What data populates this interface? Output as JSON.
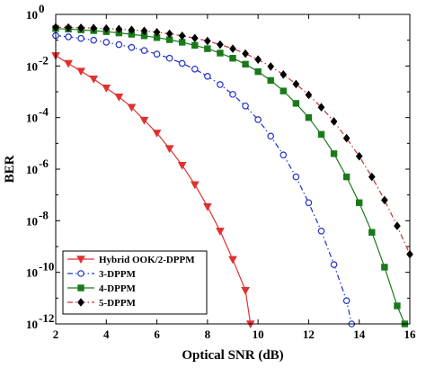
{
  "chart_data": {
    "type": "line",
    "title": "",
    "xlabel": "Optical SNR (dB)",
    "ylabel": "BER",
    "xlim": [
      2,
      16
    ],
    "ylim_log10": [
      -12,
      0
    ],
    "yscale": "log",
    "grid": false,
    "legend_position": "bottom-left",
    "x_ticks": [
      2,
      4,
      6,
      8,
      10,
      12,
      14,
      16
    ],
    "y_ticks_exponents": [
      0,
      -2,
      -4,
      -6,
      -8,
      -10,
      -12
    ],
    "y_tick_base": "10",
    "series": [
      {
        "name": "Hybrid OOK/2-DPPM",
        "color": "#e03030",
        "line_style": "solid",
        "marker": "triangle-down",
        "marker_filled": true,
        "x": [
          2,
          2.5,
          3,
          3.5,
          4,
          4.5,
          5,
          5.5,
          6,
          6.5,
          7,
          7.5,
          8,
          8.5,
          9,
          9.5,
          9.7
        ],
        "log10_y": [
          -1.6,
          -1.9,
          -2.2,
          -2.5,
          -2.85,
          -3.2,
          -3.6,
          -4.1,
          -4.6,
          -5.2,
          -5.85,
          -6.6,
          -7.45,
          -8.4,
          -9.5,
          -10.7,
          -12
        ]
      },
      {
        "name": "3-DPPM",
        "color": "#2030c8",
        "line_style": "dashdot",
        "marker": "circle",
        "marker_filled": false,
        "x": [
          2,
          2.5,
          3,
          3.5,
          4,
          4.5,
          5,
          5.5,
          6,
          6.5,
          7,
          7.5,
          8,
          8.5,
          9,
          9.5,
          10,
          10.5,
          11,
          11.5,
          12,
          12.5,
          13,
          13.5,
          13.7
        ],
        "log10_y": [
          -0.82,
          -0.87,
          -0.93,
          -1.0,
          -1.08,
          -1.17,
          -1.28,
          -1.4,
          -1.54,
          -1.7,
          -1.9,
          -2.12,
          -2.4,
          -2.72,
          -3.1,
          -3.55,
          -4.08,
          -4.72,
          -5.45,
          -6.3,
          -7.3,
          -8.4,
          -9.7,
          -11.1,
          -12
        ]
      },
      {
        "name": "4-DPPM",
        "color": "#1a7a1a",
        "line_style": "solid",
        "marker": "square",
        "marker_filled": true,
        "x": [
          2,
          2.5,
          3,
          3.5,
          4,
          4.5,
          5,
          5.5,
          6,
          6.5,
          7,
          7.5,
          8,
          8.5,
          9,
          9.5,
          10,
          10.5,
          11,
          11.5,
          12,
          12.5,
          13,
          13.5,
          14,
          14.5,
          15,
          15.5,
          15.8
        ],
        "log10_y": [
          -0.55,
          -0.57,
          -0.6,
          -0.63,
          -0.67,
          -0.72,
          -0.77,
          -0.83,
          -0.9,
          -0.98,
          -1.08,
          -1.2,
          -1.33,
          -1.5,
          -1.7,
          -1.93,
          -2.22,
          -2.56,
          -2.97,
          -3.45,
          -4.0,
          -4.65,
          -5.4,
          -6.3,
          -7.3,
          -8.45,
          -9.8,
          -11.3,
          -12
        ]
      },
      {
        "name": "5-DPPM",
        "color": "#c83232",
        "line_style": "dashdot",
        "marker": "diamond",
        "marker_filled": true,
        "marker_color": "#000000",
        "x": [
          2,
          2.5,
          3,
          3.5,
          4,
          4.5,
          5,
          5.5,
          6,
          6.5,
          7,
          7.5,
          8,
          8.5,
          9,
          9.5,
          10,
          10.5,
          11,
          11.5,
          12,
          12.5,
          13,
          13.5,
          14,
          14.5,
          15,
          15.5,
          16
        ],
        "log10_y": [
          -0.5,
          -0.51,
          -0.52,
          -0.53,
          -0.55,
          -0.57,
          -0.6,
          -0.64,
          -0.69,
          -0.75,
          -0.83,
          -0.92,
          -1.03,
          -1.17,
          -1.33,
          -1.52,
          -1.75,
          -2.02,
          -2.33,
          -2.7,
          -3.12,
          -3.6,
          -4.15,
          -4.8,
          -5.5,
          -6.3,
          -7.2,
          -8.2,
          -9.3
        ]
      }
    ]
  }
}
